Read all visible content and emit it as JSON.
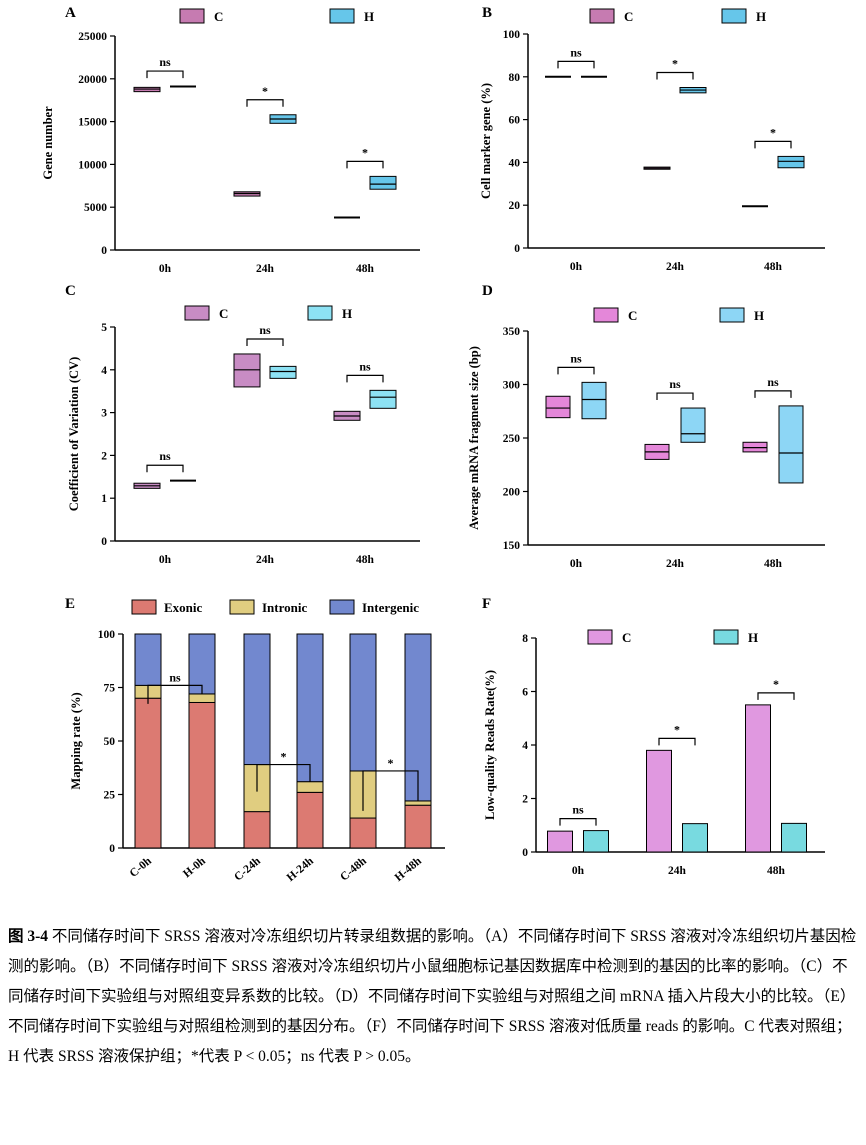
{
  "caption": {
    "label": "图 3-4",
    "text": "不同储存时间下 SRSS 溶液对冷冻组织切片转录组数据的影响。（A）不同储存时间下 SRSS 溶液对冷冻组织切片基因检测的影响。（B）不同储存时间下 SRSS 溶液对冷冻组织切片小鼠细胞标记基因数据库中检测到的基因的比率的影响。（C）不同储存时间下实验组与对照组变异系数的比较。（D）不同储存时间下实验组与对照组之间 mRNA 插入片段大小的比较。（E）不同储存时间下实验组与对照组检测到的基因分布。（F）不同储存时间下 SRSS 溶液对低质量 reads 的影响。C 代表对照组；H 代表 SRSS 溶液保护组；*代表 P < 0.05；ns 代表 P > 0.05。"
  },
  "colors": {
    "C_A": "#c67bb1",
    "H_A": "#66c6ea",
    "C_C": "#c88cc4",
    "H_C": "#8de2f4",
    "C_D": "#e487d9",
    "H_D": "#8dd6f5",
    "C_F": "#e098e0",
    "H_F": "#78dae0",
    "exonic": "#dc7a72",
    "intronic": "#e0cd80",
    "intergenic": "#7288cf"
  },
  "chart_data": [
    {
      "panel": "A",
      "type": "box",
      "xlabel": "",
      "ylabel": "Gene number",
      "ylim": [
        0,
        25000
      ],
      "yticks": [
        0,
        5000,
        10000,
        15000,
        20000,
        25000
      ],
      "categories": [
        "0h",
        "24h",
        "48h"
      ],
      "legend": [
        "C",
        "H"
      ],
      "series": [
        {
          "name": "C",
          "boxes": [
            {
              "low": 18500,
              "median": 18800,
              "high": 19000
            },
            {
              "low": 6300,
              "median": 6600,
              "high": 6800
            },
            {
              "low": 3700,
              "median": 3800,
              "high": 3800
            }
          ]
        },
        {
          "name": "H",
          "boxes": [
            {
              "low": 19000,
              "median": 19100,
              "high": 19150
            },
            {
              "low": 14800,
              "median": 15300,
              "high": 15800
            },
            {
              "low": 7100,
              "median": 7700,
              "high": 8600
            }
          ]
        }
      ],
      "significance": [
        "ns",
        "*",
        "*"
      ]
    },
    {
      "panel": "B",
      "type": "box",
      "xlabel": "",
      "ylabel": "Cell marker gene (%)",
      "ylim": [
        0,
        100
      ],
      "yticks": [
        0,
        20,
        40,
        60,
        80,
        100
      ],
      "categories": [
        "0h",
        "24h",
        "48h"
      ],
      "legend": [
        "C",
        "H"
      ],
      "series": [
        {
          "name": "C",
          "boxes": [
            {
              "low": 80,
              "median": 80,
              "high": 80
            },
            {
              "low": 36.8,
              "median": 37.3,
              "high": 37.8
            },
            {
              "low": 19.3,
              "median": 19.5,
              "high": 19.6
            }
          ]
        },
        {
          "name": "H",
          "boxes": [
            {
              "low": 79.8,
              "median": 80,
              "high": 80.2
            },
            {
              "low": 72.5,
              "median": 73.8,
              "high": 75
            },
            {
              "low": 37.5,
              "median": 40.5,
              "high": 42.8
            }
          ]
        }
      ],
      "significance": [
        "ns",
        "*",
        "*"
      ]
    },
    {
      "panel": "C",
      "type": "box",
      "xlabel": "",
      "ylabel": "Coefficient of Variation (CV)",
      "ylim": [
        0,
        5
      ],
      "yticks": [
        0,
        1,
        2,
        3,
        4,
        5
      ],
      "categories": [
        "0h",
        "24h",
        "48h"
      ],
      "legend": [
        "C",
        "H"
      ],
      "series": [
        {
          "name": "C",
          "boxes": [
            {
              "low": 1.23,
              "median": 1.29,
              "high": 1.35
            },
            {
              "low": 3.6,
              "median": 4.0,
              "high": 4.37
            },
            {
              "low": 2.82,
              "median": 2.92,
              "high": 3.03
            }
          ]
        },
        {
          "name": "H",
          "boxes": [
            {
              "low": 1.4,
              "median": 1.41,
              "high": 1.42
            },
            {
              "low": 3.8,
              "median": 3.96,
              "high": 4.08
            },
            {
              "low": 3.1,
              "median": 3.36,
              "high": 3.52
            }
          ]
        }
      ],
      "significance": [
        "ns",
        "ns",
        "ns"
      ]
    },
    {
      "panel": "D",
      "type": "box",
      "xlabel": "",
      "ylabel": "Average mRNA fragment size (bp)",
      "ylim": [
        150,
        350
      ],
      "yticks": [
        150,
        200,
        250,
        300,
        350
      ],
      "categories": [
        "0h",
        "24h",
        "48h"
      ],
      "legend": [
        "C",
        "H"
      ],
      "series": [
        {
          "name": "C",
          "boxes": [
            {
              "low": 269,
              "median": 278,
              "high": 289
            },
            {
              "low": 230,
              "median": 237,
              "high": 244
            },
            {
              "low": 237,
              "median": 241,
              "high": 246
            }
          ]
        },
        {
          "name": "H",
          "boxes": [
            {
              "low": 268,
              "median": 286,
              "high": 302
            },
            {
              "low": 246,
              "median": 254,
              "high": 278
            },
            {
              "low": 208,
              "median": 236,
              "high": 280
            }
          ]
        }
      ],
      "significance": [
        "ns",
        "ns",
        "ns"
      ]
    },
    {
      "panel": "E",
      "type": "bar",
      "stacked": true,
      "xlabel": "",
      "ylabel": "Mapping rate (%)",
      "ylim": [
        0,
        100
      ],
      "yticks": [
        0,
        25,
        50,
        75,
        100
      ],
      "categories": [
        "C-0h",
        "H-0h",
        "C-24h",
        "H-24h",
        "C-48h",
        "H-48h"
      ],
      "legend": [
        "Exonic",
        "Intronic",
        "Intergenic"
      ],
      "series": [
        {
          "name": "Exonic",
          "values": [
            70,
            68,
            17,
            26,
            14,
            20
          ]
        },
        {
          "name": "Intronic",
          "values": [
            6,
            4,
            22,
            5,
            22,
            2
          ]
        },
        {
          "name": "Intergenic",
          "values": [
            24,
            28,
            61,
            69,
            64,
            78
          ]
        }
      ],
      "significance": [
        "ns",
        "*",
        "*"
      ]
    },
    {
      "panel": "F",
      "type": "bar",
      "xlabel": "",
      "ylabel": "Low-quality Reads Rate(%)",
      "ylim": [
        0,
        8
      ],
      "yticks": [
        0,
        2,
        4,
        6,
        8
      ],
      "categories": [
        "0h",
        "24h",
        "48h"
      ],
      "legend": [
        "C",
        "H"
      ],
      "series": [
        {
          "name": "C",
          "values": [
            0.78,
            3.8,
            5.5
          ]
        },
        {
          "name": "H",
          "values": [
            0.8,
            1.06,
            1.07
          ]
        }
      ],
      "significance": [
        "ns",
        "*",
        "*"
      ]
    }
  ]
}
